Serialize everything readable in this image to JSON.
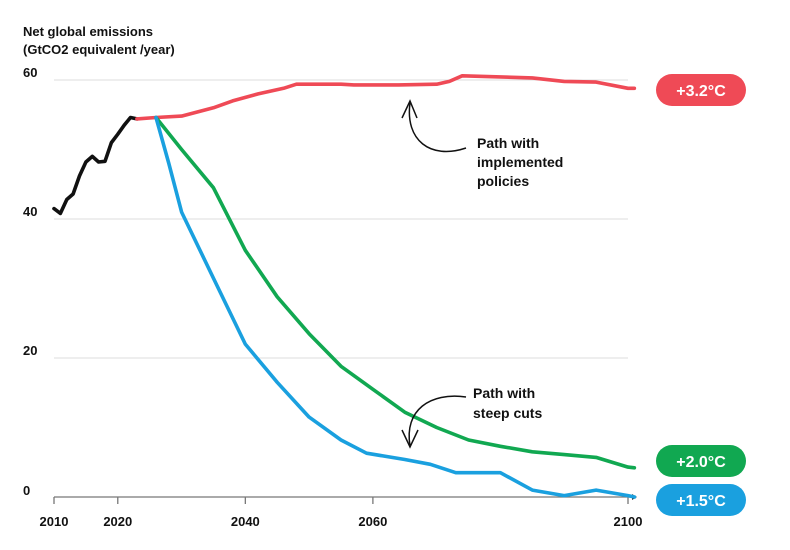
{
  "chart_data": {
    "type": "line",
    "ylabel_lines": [
      "Net global emissions",
      "(GtCO2 equivalent /year)"
    ],
    "x_ticks": [
      "2010",
      "2020",
      "2040",
      "2060",
      "2100"
    ],
    "y_ticks": [
      "0",
      "20",
      "40",
      "60"
    ],
    "xlim": [
      2010,
      2100
    ],
    "ylim": [
      0,
      60
    ],
    "grid": true,
    "series": [
      {
        "key": "historical",
        "color": "#111111",
        "points": [
          [
            2010,
            41.5
          ],
          [
            2011,
            40.8
          ],
          [
            2012,
            42.8
          ],
          [
            2013,
            43.6
          ],
          [
            2014,
            46.2
          ],
          [
            2015,
            48.2
          ],
          [
            2016,
            49.0
          ],
          [
            2017,
            48.2
          ],
          [
            2018,
            48.3
          ],
          [
            2019,
            51.0
          ],
          [
            2020,
            52.2
          ],
          [
            2021,
            53.5
          ],
          [
            2022,
            54.6
          ],
          [
            2023,
            54.4
          ]
        ]
      },
      {
        "key": "implemented",
        "color": "#ef4a56",
        "points": [
          [
            2023,
            54.4
          ],
          [
            2026,
            54.6
          ],
          [
            2030,
            54.8
          ],
          [
            2035,
            56.0
          ],
          [
            2038,
            57.0
          ],
          [
            2042,
            58.0
          ],
          [
            2046,
            58.8
          ],
          [
            2048,
            59.4
          ],
          [
            2055,
            59.4
          ],
          [
            2057,
            59.3
          ],
          [
            2064,
            59.3
          ],
          [
            2070,
            59.4
          ],
          [
            2072,
            59.8
          ],
          [
            2074,
            60.6
          ],
          [
            2085,
            60.3
          ],
          [
            2090,
            59.8
          ],
          [
            2095,
            59.7
          ],
          [
            2100,
            58.8
          ],
          [
            2101,
            58.8
          ]
        ]
      },
      {
        "key": "2c",
        "color": "#11a851",
        "points": [
          [
            2026,
            54.6
          ],
          [
            2030,
            50.0
          ],
          [
            2035,
            44.5
          ],
          [
            2040,
            35.5
          ],
          [
            2045,
            28.8
          ],
          [
            2050,
            23.5
          ],
          [
            2055,
            18.8
          ],
          [
            2060,
            15.5
          ],
          [
            2065,
            12.2
          ],
          [
            2070,
            10.0
          ],
          [
            2075,
            8.2
          ],
          [
            2080,
            7.3
          ],
          [
            2085,
            6.5
          ],
          [
            2090,
            6.1
          ],
          [
            2095,
            5.7
          ],
          [
            2100,
            4.3
          ],
          [
            2101,
            4.2
          ]
        ]
      },
      {
        "key": "1_5c",
        "color": "#1aa0df",
        "points": [
          [
            2026,
            54.6
          ],
          [
            2028,
            48.0
          ],
          [
            2030,
            41.0
          ],
          [
            2035,
            31.5
          ],
          [
            2040,
            22.0
          ],
          [
            2045,
            16.5
          ],
          [
            2050,
            11.5
          ],
          [
            2055,
            8.2
          ],
          [
            2059,
            6.3
          ],
          [
            2065,
            5.4
          ],
          [
            2069,
            4.7
          ],
          [
            2073,
            3.5
          ],
          [
            2080,
            3.5
          ],
          [
            2085,
            1.0
          ],
          [
            2090,
            0.2
          ],
          [
            2095,
            1.0
          ],
          [
            2100,
            0.2
          ],
          [
            2101,
            0.0
          ]
        ]
      }
    ],
    "annotations": [
      {
        "lines": [
          "Path with",
          "implemented",
          "policies"
        ]
      },
      {
        "lines": [
          "Path with",
          "steep cuts"
        ]
      }
    ],
    "badges": [
      {
        "label": "+3.2°C",
        "color": "#ef4a56"
      },
      {
        "label": "+2.0°C",
        "color": "#11a851"
      },
      {
        "label": "+1.5°C",
        "color": "#1aa0df"
      }
    ]
  }
}
